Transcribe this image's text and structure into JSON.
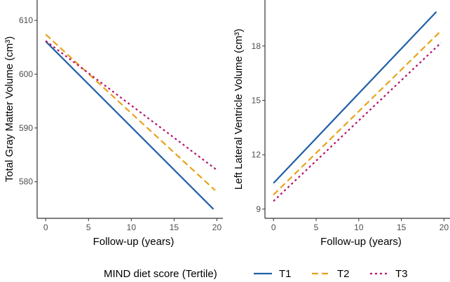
{
  "chart_data": [
    {
      "type": "line",
      "xlabel": "Follow-up (years)",
      "ylabel": "Total Gray Matter Volume (cm³)",
      "xlim": [
        -1,
        20.7
      ],
      "ylim": [
        573.2,
        613.8
      ],
      "xticks": [
        0,
        5,
        10,
        15,
        20
      ],
      "yticks": [
        580,
        590,
        600,
        610
      ],
      "grid": false,
      "series": [
        {
          "name": "T1",
          "x": [
            0,
            19.6
          ],
          "y": [
            606.1,
            574.9
          ]
        },
        {
          "name": "T2",
          "x": [
            0,
            19.8
          ],
          "y": [
            607.4,
            578.4
          ]
        },
        {
          "name": "T3",
          "x": [
            0,
            19.9
          ],
          "y": [
            606.2,
            582.3
          ]
        }
      ]
    },
    {
      "type": "line",
      "xlabel": "Follow-up (years)",
      "ylabel": "Left Lateral Ventricle Volume (cm³)",
      "xlim": [
        -1,
        20.7
      ],
      "ylim": [
        8.49,
        20.54
      ],
      "xticks": [
        0,
        5,
        10,
        15,
        20
      ],
      "yticks": [
        9,
        12,
        15,
        18
      ],
      "grid": false,
      "series": [
        {
          "name": "T1",
          "x": [
            0,
            19.1
          ],
          "y": [
            10.43,
            19.89
          ]
        },
        {
          "name": "T2",
          "x": [
            0,
            19.5
          ],
          "y": [
            9.79,
            18.77
          ]
        },
        {
          "name": "T3",
          "x": [
            0,
            19.65
          ],
          "y": [
            9.44,
            18.18
          ]
        }
      ]
    }
  ],
  "legend": {
    "title": "MIND diet score (Tertile)",
    "placement": "bottom",
    "entries": [
      {
        "label": "T1",
        "color": "#1f5fa8",
        "style": "solid"
      },
      {
        "label": "T2",
        "color": "#e8a21a",
        "style": "dashed"
      },
      {
        "label": "T3",
        "color": "#b5136f",
        "style": "dotted"
      }
    ]
  }
}
